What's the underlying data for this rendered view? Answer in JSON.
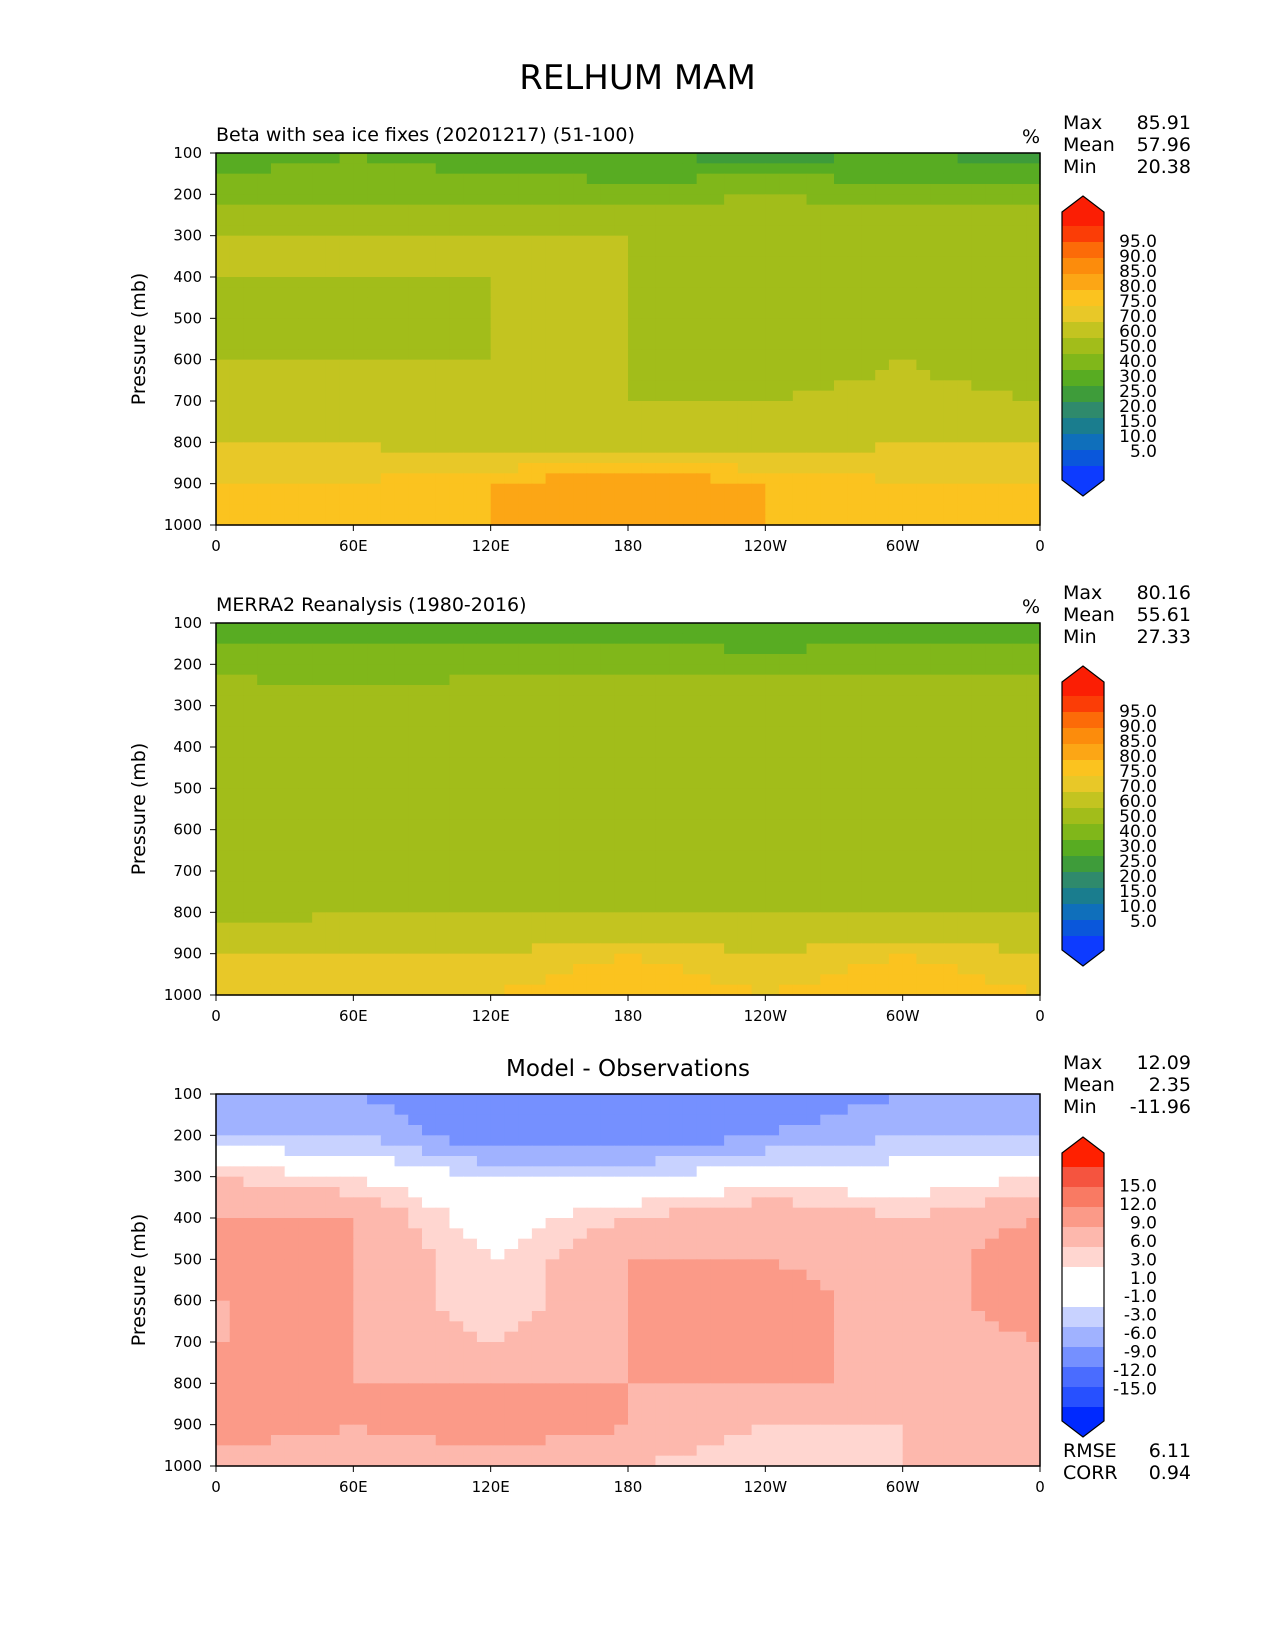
{
  "title": "RELHUM MAM",
  "colors": {
    "rh_levels": [
      "#0d3bff",
      "#0a57db",
      "#0f6fbb",
      "#1a7d8e",
      "#2f8a6c",
      "#3e9c3a",
      "#58ac22",
      "#80b71a",
      "#a2bd1a",
      "#c3c420",
      "#e8c828",
      "#fbc31f",
      "#fca615",
      "#fc8c0c",
      "#fc6b08",
      "#fb3d06",
      "#fb1e04"
    ],
    "diff_levels": [
      "#0029ff",
      "#2750ff",
      "#4a6cff",
      "#7590ff",
      "#a0b2ff",
      "#c8d2ff",
      "#ffffff",
      "#ffffff",
      "#ffd6d0",
      "#fdb8ad",
      "#fb9a88",
      "#f97a63",
      "#f5543f",
      "#ff2000"
    ]
  },
  "panels": [
    {
      "title": "Beta with sea ice fixes (20201217) (51-100)",
      "units": "%",
      "stats": {
        "max_label": "Max",
        "max": "85.91",
        "mean_label": "Mean",
        "mean": "57.96",
        "min_label": "Min",
        "min": "20.38"
      },
      "colorbar": {
        "type": "rh",
        "ticks": [
          "95.0",
          "90.0",
          "85.0",
          "80.0",
          "75.0",
          "70.0",
          "60.0",
          "50.0",
          "40.0",
          "30.0",
          "25.0",
          "20.0",
          "15.0",
          "10.0",
          "5.0"
        ]
      }
    },
    {
      "title": "MERRA2 Reanalysis (1980-2016)",
      "units": "%",
      "stats": {
        "max_label": "Max",
        "max": "80.16",
        "mean_label": "Mean",
        "mean": "55.61",
        "min_label": "Min",
        "min": "27.33"
      },
      "colorbar": {
        "type": "rh",
        "ticks": [
          "95.0",
          "90.0",
          "85.0",
          "80.0",
          "75.0",
          "70.0",
          "60.0",
          "50.0",
          "40.0",
          "30.0",
          "25.0",
          "20.0",
          "15.0",
          "10.0",
          "5.0"
        ]
      }
    },
    {
      "title": "Model - Observations",
      "units": "",
      "stats": {
        "max_label": "Max",
        "max": "12.09",
        "mean_label": "Mean",
        "mean": "2.35",
        "min_label": "Min",
        "min": "-11.96"
      },
      "colorbar": {
        "type": "diff",
        "ticks": [
          "15.0",
          "12.0",
          "9.0",
          "6.0",
          "3.0",
          "1.0",
          "-1.0",
          "-3.0",
          "-6.0",
          "-9.0",
          "-12.0",
          "-15.0"
        ]
      },
      "metrics": {
        "rmse_label": "RMSE",
        "rmse": "6.11",
        "corr_label": "CORR",
        "corr": "0.94"
      }
    }
  ],
  "axes": {
    "ylabel": "Pressure (mb)",
    "yticks": [
      "100",
      "200",
      "300",
      "400",
      "500",
      "600",
      "700",
      "800",
      "900",
      "1000"
    ],
    "xticks": [
      "0",
      "60E",
      "120E",
      "180",
      "120W",
      "60W",
      "0"
    ]
  },
  "chart_data": [
    {
      "type": "heatmap",
      "title": "Beta with sea ice fixes (20201217) (51-100)",
      "ylabel": "Pressure (mb)",
      "ylim": [
        1000,
        100
      ],
      "x": [
        "0",
        "60E",
        "120E",
        "180",
        "120W",
        "60W",
        "0"
      ],
      "y": [
        100,
        200,
        300,
        400,
        500,
        600,
        700,
        800,
        900,
        1000
      ],
      "values_rh_percent": [
        [
          35,
          40,
          35,
          30,
          25,
          30,
          25
        ],
        [
          45,
          45,
          45,
          45,
          50,
          45,
          45
        ],
        [
          60,
          60,
          60,
          60,
          60,
          60,
          60
        ],
        [
          60,
          60,
          60,
          60,
          55,
          60,
          55
        ],
        [
          60,
          55,
          60,
          60,
          50,
          60,
          50
        ],
        [
          60,
          60,
          60,
          60,
          50,
          60,
          50
        ],
        [
          60,
          65,
          60,
          60,
          60,
          65,
          60
        ],
        [
          70,
          70,
          65,
          65,
          65,
          70,
          70
        ],
        [
          75,
          75,
          80,
          85,
          80,
          75,
          75
        ],
        [
          80,
          80,
          80,
          80,
          80,
          80,
          80
        ]
      ],
      "stats": {
        "max": 85.91,
        "mean": 57.96,
        "min": 20.38
      }
    },
    {
      "type": "heatmap",
      "title": "MERRA2 Reanalysis (1980-2016)",
      "ylabel": "Pressure (mb)",
      "ylim": [
        1000,
        100
      ],
      "x": [
        "0",
        "60E",
        "120E",
        "180",
        "120W",
        "60W",
        "0"
      ],
      "y": [
        100,
        200,
        300,
        400,
        500,
        600,
        700,
        800,
        900,
        1000
      ],
      "values_rh_percent": [
        [
          35,
          35,
          35,
          35,
          30,
          35,
          35
        ],
        [
          45,
          45,
          45,
          45,
          45,
          45,
          45
        ],
        [
          60,
          55,
          60,
          60,
          60,
          60,
          60
        ],
        [
          55,
          50,
          60,
          55,
          50,
          60,
          50
        ],
        [
          50,
          50,
          60,
          50,
          50,
          60,
          50
        ],
        [
          50,
          50,
          60,
          50,
          50,
          60,
          50
        ],
        [
          60,
          50,
          60,
          55,
          50,
          60,
          55
        ],
        [
          55,
          60,
          60,
          60,
          60,
          60,
          60
        ],
        [
          70,
          70,
          70,
          75,
          70,
          75,
          70
        ],
        [
          75,
          75,
          75,
          80,
          75,
          80,
          75
        ]
      ],
      "stats": {
        "max": 80.16,
        "mean": 55.61,
        "min": 27.33
      }
    },
    {
      "type": "heatmap",
      "title": "Model - Observations",
      "ylabel": "Pressure (mb)",
      "ylim": [
        1000,
        100
      ],
      "x": [
        "0",
        "60E",
        "120E",
        "180",
        "120W",
        "60W",
        "0"
      ],
      "y": [
        100,
        200,
        300,
        400,
        500,
        600,
        700,
        800,
        900,
        1000
      ],
      "values_rh_diff": [
        [
          -6,
          -9,
          -12,
          -12,
          -12,
          -9,
          -9
        ],
        [
          -6,
          -6,
          -12,
          -12,
          -9,
          -6,
          -6
        ],
        [
          3,
          1,
          -3,
          -3,
          -1,
          -1,
          1
        ],
        [
          6,
          6,
          -1,
          3,
          6,
          3,
          6
        ],
        [
          9,
          6,
          1,
          6,
          6,
          3,
          9
        ],
        [
          6,
          6,
          1,
          6,
          9,
          3,
          9
        ],
        [
          6,
          6,
          3,
          6,
          9,
          3,
          6
        ],
        [
          9,
          6,
          6,
          6,
          6,
          6,
          6
        ],
        [
          9,
          6,
          9,
          6,
          3,
          3,
          3
        ],
        [
          3,
          3,
          3,
          3,
          1,
          3,
          3
        ]
      ],
      "stats": {
        "max": 12.09,
        "mean": 2.35,
        "min": -11.96
      },
      "rmse": 6.11,
      "corr": 0.94
    }
  ]
}
